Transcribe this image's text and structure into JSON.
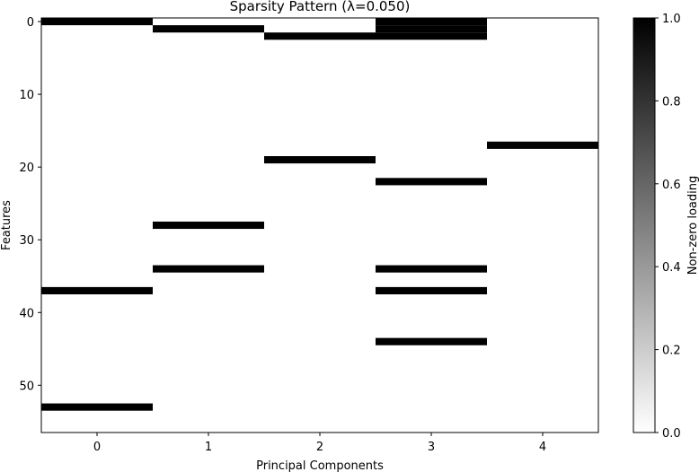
{
  "chart_data": {
    "type": "heatmap",
    "title": "Sparsity Pattern (λ=0.050)",
    "xlabel": "Principal Components",
    "ylabel": "Features",
    "x_categories": [
      0,
      1,
      2,
      3,
      4
    ],
    "n_features": 57,
    "xlim": [
      -0.5,
      4.5
    ],
    "ylim": [
      56.5,
      -0.5
    ],
    "x_ticks": [
      "0",
      "1",
      "2",
      "3",
      "4"
    ],
    "y_ticks": [
      0,
      10,
      20,
      30,
      40,
      50
    ],
    "colormap": "binary",
    "background_color": "#ffffff",
    "mark_color": "#000000",
    "grid": false,
    "nonzero_cells": [
      {
        "component": 0,
        "feature": 0
      },
      {
        "component": 0,
        "feature": 37
      },
      {
        "component": 0,
        "feature": 53
      },
      {
        "component": 1,
        "feature": 1
      },
      {
        "component": 1,
        "feature": 28
      },
      {
        "component": 1,
        "feature": 34
      },
      {
        "component": 2,
        "feature": 2
      },
      {
        "component": 2,
        "feature": 19
      },
      {
        "component": 3,
        "feature": 0
      },
      {
        "component": 3,
        "feature": 1
      },
      {
        "component": 3,
        "feature": 2
      },
      {
        "component": 3,
        "feature": 22
      },
      {
        "component": 3,
        "feature": 34
      },
      {
        "component": 3,
        "feature": 37
      },
      {
        "component": 3,
        "feature": 44
      },
      {
        "component": 4,
        "feature": 17
      }
    ],
    "colorbar": {
      "label": "Non-zero loading",
      "range": [
        0.0,
        1.0
      ],
      "ticks": [
        "0.0",
        "0.2",
        "0.4",
        "0.6",
        "0.8",
        "1.0"
      ]
    }
  }
}
